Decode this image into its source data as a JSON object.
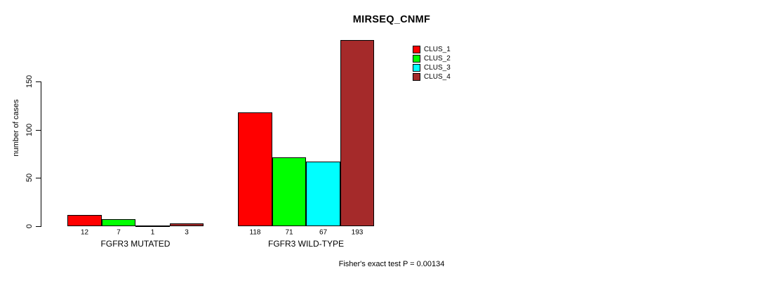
{
  "title": "MIRSEQ_CNMF",
  "y_axis": {
    "label": "number of cases",
    "ticks": [
      0,
      50,
      100,
      150
    ]
  },
  "legend": {
    "items": [
      {
        "label": "CLUS_1",
        "color": "#FF0000"
      },
      {
        "label": "CLUS_2",
        "color": "#00FF00"
      },
      {
        "label": "CLUS_3",
        "color": "#00FFFF"
      },
      {
        "label": "CLUS_4",
        "color": "#A52A2A"
      }
    ]
  },
  "footer": "Fisher's exact test P = 0.00134",
  "chart_data": {
    "type": "bar",
    "title": "MIRSEQ_CNMF",
    "categories": [
      "FGFR3 MUTATED",
      "FGFR3 WILD-TYPE"
    ],
    "series": [
      {
        "name": "CLUS_1",
        "color": "#FF0000",
        "values": [
          12,
          118
        ]
      },
      {
        "name": "CLUS_2",
        "color": "#00FF00",
        "values": [
          7,
          71
        ]
      },
      {
        "name": "CLUS_3",
        "color": "#00FFFF",
        "values": [
          1,
          67
        ]
      },
      {
        "name": "CLUS_4",
        "color": "#A52A2A",
        "values": [
          3,
          193
        ]
      }
    ],
    "xlabel": "",
    "ylabel": "number of cases",
    "yticks": [
      0,
      50,
      100,
      150
    ],
    "ylim": [
      0,
      200
    ],
    "grid": false,
    "bar_value_labels_shown": true,
    "legend_position": "top-right",
    "annotation": "Fisher's exact test P = 0.00134"
  }
}
